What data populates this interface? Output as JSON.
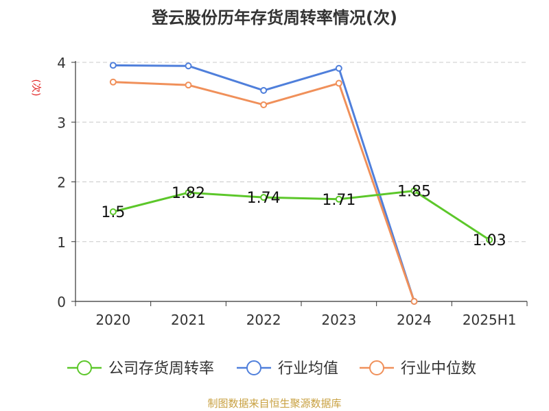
{
  "chart_data": {
    "type": "line",
    "title": "登云股份历年存货周转率情况(次)",
    "ylabel": "(次)",
    "categories": [
      "2020",
      "2021",
      "2022",
      "2023",
      "2024",
      "2025H1"
    ],
    "ylim": [
      0,
      4
    ],
    "yticks": [
      0,
      1,
      2,
      3,
      4
    ],
    "grid": true,
    "legend_position": "bottom",
    "series": [
      {
        "name": "公司存货周转率",
        "color": "#5cc72a",
        "values": [
          1.5,
          1.82,
          1.74,
          1.71,
          1.85,
          1.03
        ],
        "labels": [
          "1.5",
          "1.82",
          "1.74",
          "1.71",
          "1.85",
          "1.03"
        ]
      },
      {
        "name": "行业均值",
        "color": "#4f7fdb",
        "values": [
          3.95,
          3.94,
          3.53,
          3.9,
          0,
          null
        ]
      },
      {
        "name": "行业中位数",
        "color": "#f0905a",
        "values": [
          3.67,
          3.62,
          3.29,
          3.65,
          0,
          null
        ]
      }
    ]
  },
  "source": "制图数据来自恒生聚源数据库"
}
